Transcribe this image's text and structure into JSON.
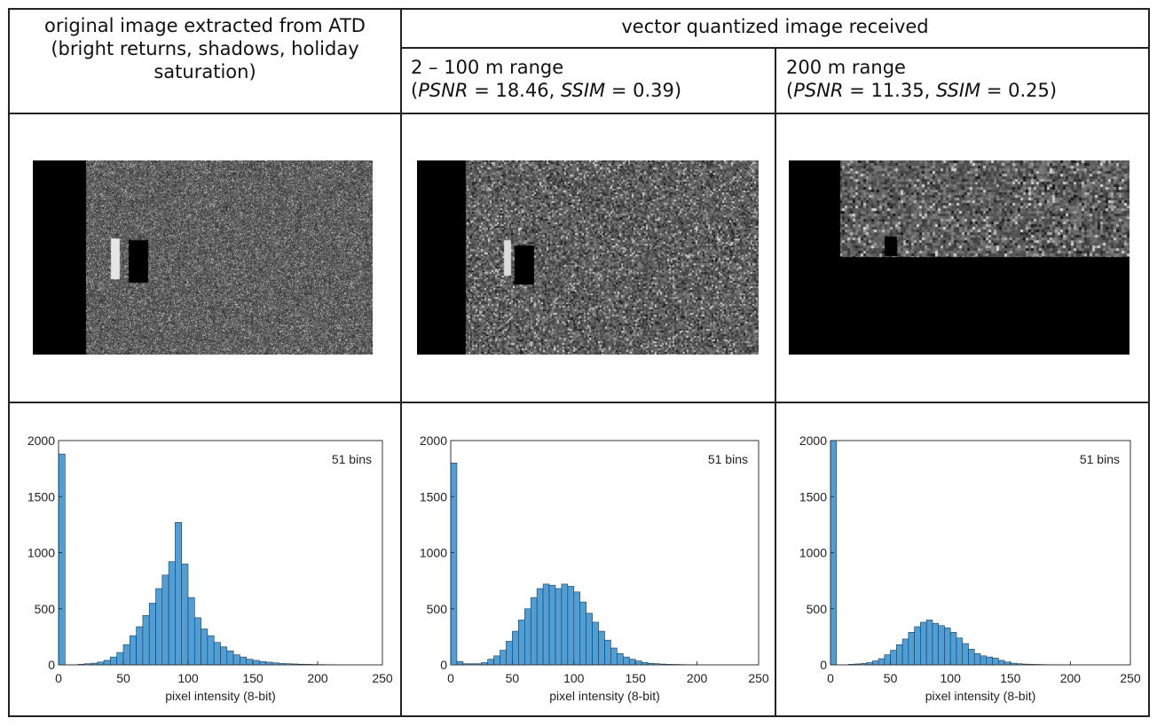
{
  "table": {
    "col1_header": [
      "original image extracted from ATD",
      "(bright returns, shadows, holiday",
      "saturation)"
    ],
    "group_header": "vector quantized image received",
    "col2_header": {
      "line1": "2 – 100 m range",
      "psnr_label": "PSNR",
      "psnr_value": "= 18.46,",
      "ssim_label": "SSIM",
      "ssim_value": "= 0.39)"
    },
    "col3_header": {
      "line1": "200 m range",
      "psnr_label": "PSNR",
      "psnr_value": "= 11.35,",
      "ssim_label": "SSIM",
      "ssim_value": "= 0.25)"
    },
    "open_paren": "("
  },
  "chart_data": [
    {
      "type": "bar",
      "annotation": "51 bins",
      "xlabel": "pixel intensity (8-bit)",
      "ylabel": "",
      "xlim": [
        0,
        250
      ],
      "ylim": [
        0,
        2000
      ],
      "xticks": [
        0,
        50,
        100,
        150,
        200,
        250
      ],
      "yticks": [
        0,
        500,
        1000,
        1500,
        2000
      ],
      "bin_width": 5,
      "bin_starts": [
        0,
        5,
        10,
        15,
        20,
        25,
        30,
        35,
        40,
        45,
        50,
        55,
        60,
        65,
        70,
        75,
        80,
        85,
        90,
        95,
        100,
        105,
        110,
        115,
        120,
        125,
        130,
        135,
        140,
        145,
        150,
        155,
        160,
        165,
        170,
        175,
        180,
        185,
        190,
        195,
        200,
        205,
        210,
        215,
        220,
        225,
        230,
        235,
        240,
        245,
        250
      ],
      "values": [
        1880,
        0,
        0,
        5,
        10,
        15,
        25,
        40,
        70,
        110,
        180,
        260,
        340,
        440,
        550,
        680,
        800,
        920,
        1270,
        900,
        600,
        420,
        320,
        260,
        200,
        160,
        125,
        90,
        70,
        50,
        40,
        30,
        24,
        18,
        12,
        10,
        8,
        6,
        5,
        4,
        3,
        2,
        2,
        1,
        1,
        1,
        1,
        0,
        0,
        0,
        0
      ]
    },
    {
      "type": "bar",
      "annotation": "51 bins",
      "xlabel": "pixel intensity (8-bit)",
      "ylabel": "",
      "xlim": [
        0,
        250
      ],
      "ylim": [
        0,
        2000
      ],
      "xticks": [
        0,
        50,
        100,
        150,
        200,
        250
      ],
      "yticks": [
        0,
        500,
        1000,
        1500,
        2000
      ],
      "bin_width": 5,
      "bin_starts": [
        0,
        5,
        10,
        15,
        20,
        25,
        30,
        35,
        40,
        45,
        50,
        55,
        60,
        65,
        70,
        75,
        80,
        85,
        90,
        95,
        100,
        105,
        110,
        115,
        120,
        125,
        130,
        135,
        140,
        145,
        150,
        155,
        160,
        165,
        170,
        175,
        180,
        185,
        190,
        195,
        200,
        205,
        210,
        215,
        220,
        225,
        230,
        235,
        240,
        245,
        250
      ],
      "values": [
        1800,
        30,
        10,
        10,
        10,
        20,
        50,
        80,
        130,
        210,
        300,
        400,
        500,
        600,
        680,
        720,
        710,
        680,
        720,
        700,
        650,
        560,
        460,
        380,
        300,
        220,
        150,
        100,
        70,
        50,
        35,
        22,
        14,
        10,
        7,
        5,
        4,
        3,
        2,
        2,
        1,
        1,
        0,
        0,
        0,
        0,
        0,
        0,
        0,
        0,
        0
      ]
    },
    {
      "type": "bar",
      "annotation": "51 bins",
      "xlabel": "pixel intensity (8-bit)",
      "ylabel": "",
      "xlim": [
        0,
        250
      ],
      "ylim": [
        0,
        2000
      ],
      "xticks": [
        0,
        50,
        100,
        150,
        200,
        250
      ],
      "yticks": [
        0,
        500,
        1000,
        1500,
        2000
      ],
      "bin_width": 5,
      "bin_starts": [
        0,
        5,
        10,
        15,
        20,
        25,
        30,
        35,
        40,
        45,
        50,
        55,
        60,
        65,
        70,
        75,
        80,
        85,
        90,
        95,
        100,
        105,
        110,
        115,
        120,
        125,
        130,
        135,
        140,
        145,
        150,
        155,
        160,
        165,
        170,
        175,
        180,
        185,
        190,
        195,
        200,
        205,
        210,
        215,
        220,
        225,
        230,
        235,
        240,
        245,
        250
      ],
      "values": [
        2000,
        0,
        0,
        5,
        8,
        12,
        20,
        35,
        55,
        90,
        130,
        180,
        230,
        290,
        340,
        380,
        400,
        370,
        350,
        330,
        290,
        240,
        190,
        140,
        100,
        80,
        70,
        60,
        40,
        25,
        15,
        10,
        7,
        5,
        4,
        3,
        2,
        2,
        1,
        1,
        1,
        1,
        1,
        1,
        1,
        1,
        1,
        0,
        0,
        0,
        0
      ]
    }
  ]
}
